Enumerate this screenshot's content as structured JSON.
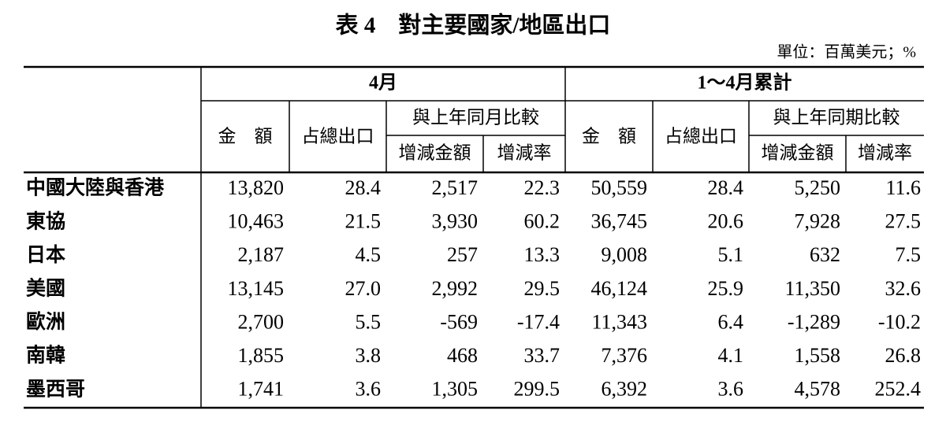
{
  "title": "表 4　對主要國家/地區出口",
  "unit": "單位：百萬美元；%",
  "table": {
    "groups": [
      {
        "label": "4月",
        "amount": "金　額",
        "share": "占總出口",
        "compare": "與上年同月比較",
        "change_amount": "增減金額",
        "change_rate": "增減率"
      },
      {
        "label": "1～4月累計",
        "amount": "金　額",
        "share": "占總出口",
        "compare": "與上年同期比較",
        "change_amount": "增減金額",
        "change_rate": "增減率"
      }
    ],
    "rows": [
      [
        "中國大陸與香港",
        "13,820",
        "28.4",
        "2,517",
        "22.3",
        "50,559",
        "28.4",
        "5,250",
        "11.6"
      ],
      [
        "東協",
        "10,463",
        "21.5",
        "3,930",
        "60.2",
        "36,745",
        "20.6",
        "7,928",
        "27.5"
      ],
      [
        "日本",
        "2,187",
        "4.5",
        "257",
        "13.3",
        "9,008",
        "5.1",
        "632",
        "7.5"
      ],
      [
        "美國",
        "13,145",
        "27.0",
        "2,992",
        "29.5",
        "46,124",
        "25.9",
        "11,350",
        "32.6"
      ],
      [
        "歐洲",
        "2,700",
        "5.5",
        "-569",
        "-17.4",
        "11,343",
        "6.4",
        "-1,289",
        "-10.2"
      ],
      [
        "南韓",
        "1,855",
        "3.8",
        "468",
        "33.7",
        "7,376",
        "4.1",
        "1,558",
        "26.8"
      ],
      [
        "墨西哥",
        "1,741",
        "3.6",
        "1,305",
        "299.5",
        "6,392",
        "3.6",
        "4,578",
        "252.4"
      ]
    ]
  }
}
